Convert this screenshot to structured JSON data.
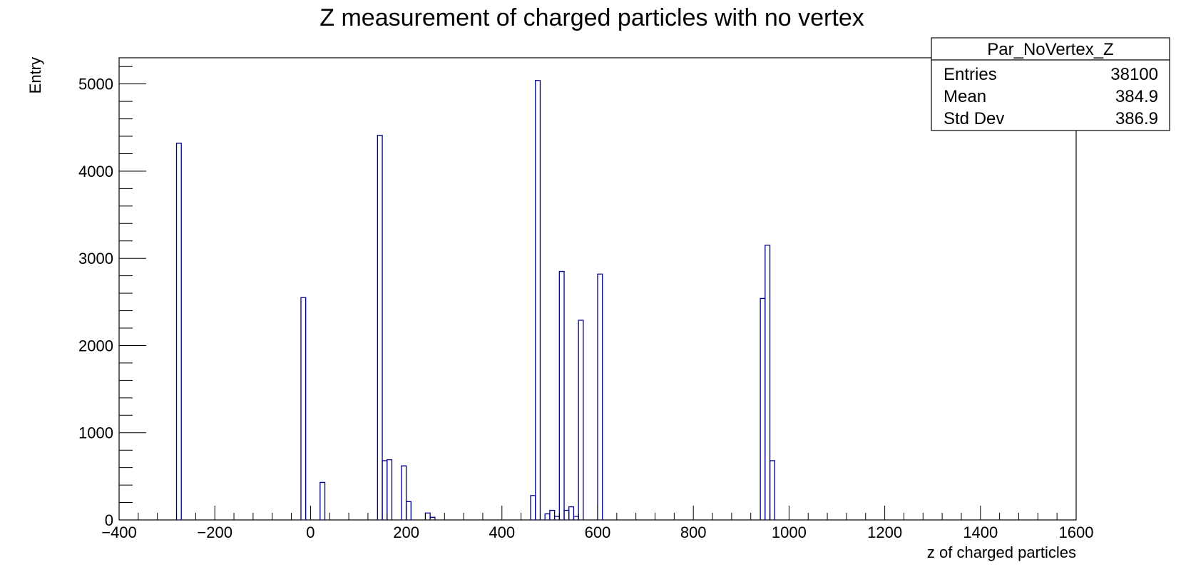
{
  "chart_data": {
    "type": "histogram",
    "title": "Z measurement of charged particles with no vertex",
    "xlabel": "z of charged particles",
    "ylabel": "Entry",
    "xlim": [
      -400,
      1600
    ],
    "ylim": [
      0,
      5300
    ],
    "x_ticks": [
      -400,
      -200,
      0,
      200,
      400,
      600,
      800,
      1000,
      1200,
      1400,
      1600
    ],
    "x_tick_labels": [
      "−400",
      "−200",
      "0",
      "200",
      "400",
      "600",
      "800",
      "1000",
      "1200",
      "1400",
      "1600"
    ],
    "y_ticks": [
      0,
      1000,
      2000,
      3000,
      4000,
      5000
    ],
    "y_tick_labels": [
      "0",
      "1000",
      "2000",
      "3000",
      "4000",
      "5000"
    ],
    "line_color": "#00008b",
    "grid": false,
    "legend": "none",
    "bin_edges": [
      -400,
      1600
    ],
    "bin_width": 10,
    "bins": [
      {
        "x": -280,
        "y": 4320
      },
      {
        "x": -20,
        "y": 2550
      },
      {
        "x": 20,
        "y": 430
      },
      {
        "x": 140,
        "y": 4410
      },
      {
        "x": 150,
        "y": 680
      },
      {
        "x": 160,
        "y": 690
      },
      {
        "x": 190,
        "y": 620
      },
      {
        "x": 200,
        "y": 210
      },
      {
        "x": 240,
        "y": 80
      },
      {
        "x": 250,
        "y": 30
      },
      {
        "x": 460,
        "y": 280
      },
      {
        "x": 470,
        "y": 5040
      },
      {
        "x": 490,
        "y": 70
      },
      {
        "x": 500,
        "y": 110
      },
      {
        "x": 510,
        "y": 40
      },
      {
        "x": 520,
        "y": 2850
      },
      {
        "x": 530,
        "y": 110
      },
      {
        "x": 540,
        "y": 150
      },
      {
        "x": 550,
        "y": 40
      },
      {
        "x": 560,
        "y": 2290
      },
      {
        "x": 600,
        "y": 2820
      },
      {
        "x": 940,
        "y": 2540
      },
      {
        "x": 950,
        "y": 3150
      },
      {
        "x": 960,
        "y": 680
      }
    ]
  },
  "stats_box": {
    "title": "Par_NoVertex_Z",
    "rows": [
      {
        "label": "Entries",
        "value": "38100"
      },
      {
        "label": "Mean",
        "value": "384.9"
      },
      {
        "label": "Std Dev",
        "value": "386.9"
      }
    ]
  }
}
